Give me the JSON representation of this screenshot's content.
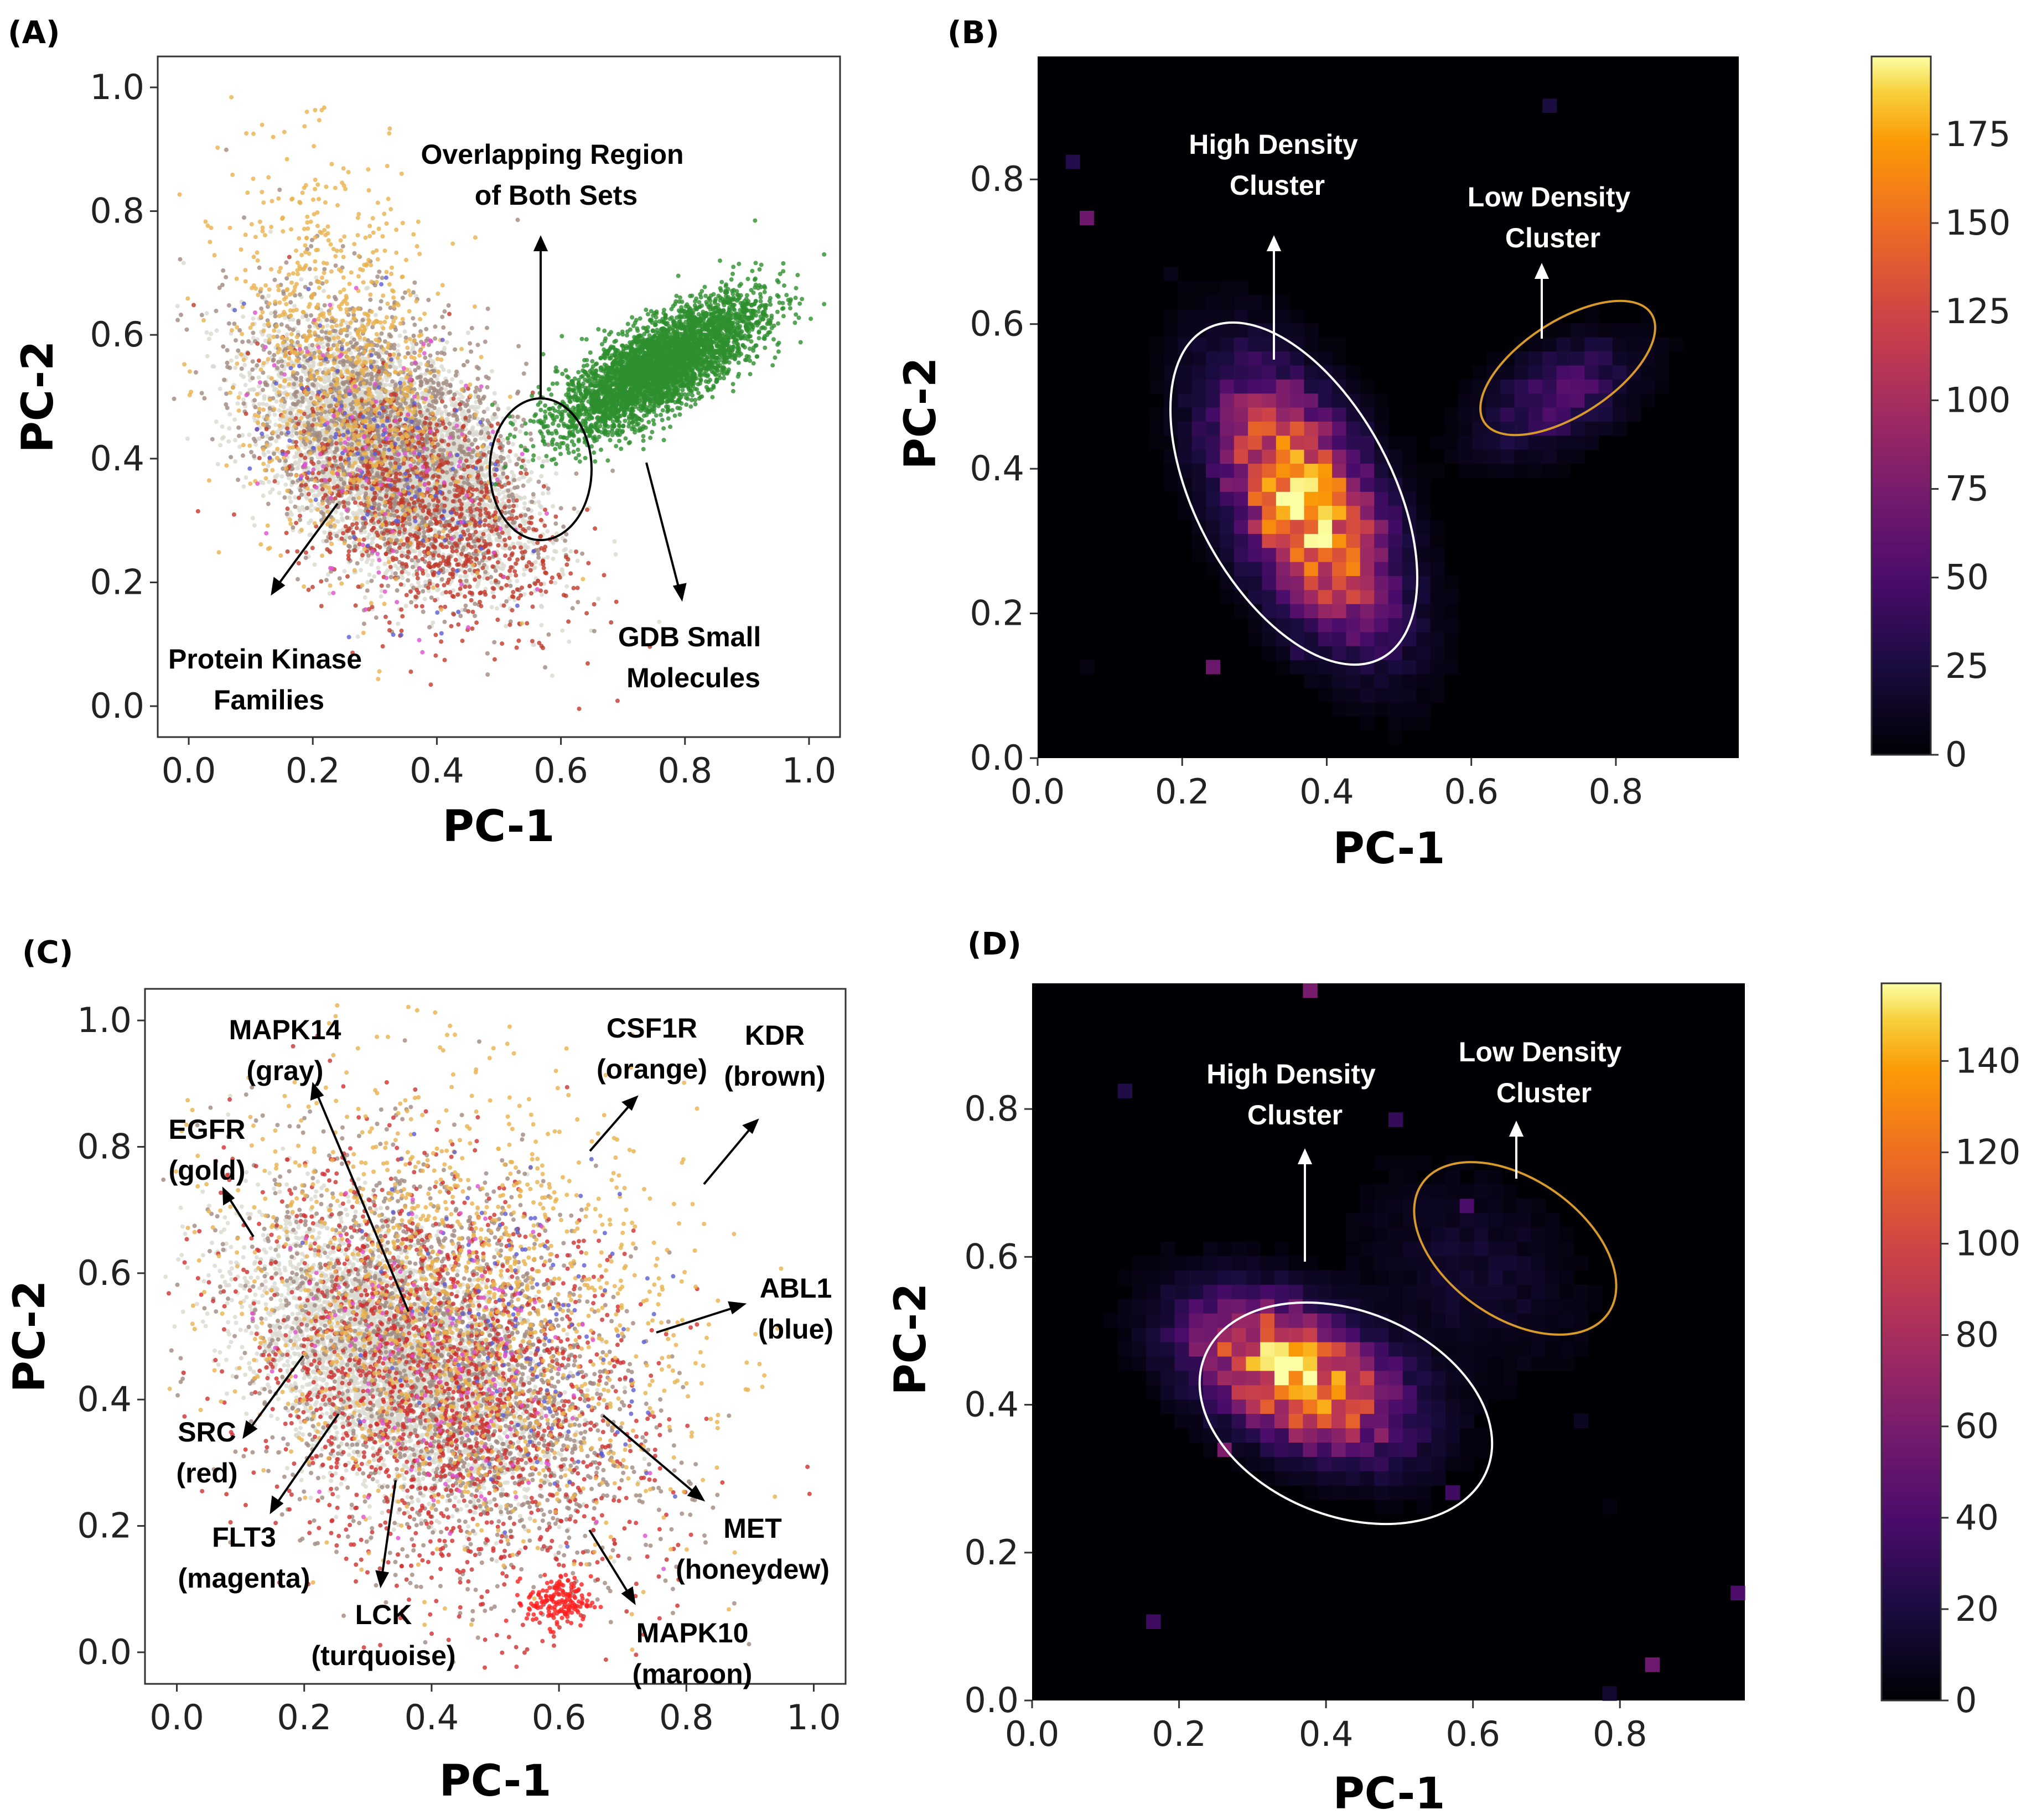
{
  "figure": {
    "panels": [
      {
        "id": "A",
        "label": "(A)"
      },
      {
        "id": "B",
        "label": "(B)"
      },
      {
        "id": "C",
        "label": "(C)"
      },
      {
        "id": "D",
        "label": "(D)"
      }
    ]
  },
  "chart_data": [
    {
      "id": "A",
      "type": "scatter",
      "label": "(A)",
      "xlabel": "PC-1",
      "ylabel": "PC-2",
      "xlim": [
        -0.05,
        1.05
      ],
      "ylim": [
        -0.05,
        1.05
      ],
      "xticks": [
        "0.0",
        "0.2",
        "0.4",
        "0.6",
        "0.8",
        "1.0"
      ],
      "yticks": [
        "0.0",
        "0.2",
        "0.4",
        "0.6",
        "0.8",
        "1.0"
      ],
      "grid": false,
      "series": [
        {
          "color": "#d9d9d0",
          "center": [
            0.33,
            0.4
          ],
          "spread": [
            0.1,
            0.09
          ],
          "rho": -0.5,
          "count": 5000
        },
        {
          "color": "#a08a80",
          "center": [
            0.32,
            0.43
          ],
          "spread": [
            0.11,
            0.12
          ],
          "rho": -0.45,
          "count": 1800
        },
        {
          "color": "#c0392b",
          "center": [
            0.38,
            0.32
          ],
          "spread": [
            0.11,
            0.1
          ],
          "rho": -0.4,
          "count": 900
        },
        {
          "color": "#e8b24c",
          "center": [
            0.25,
            0.55
          ],
          "spread": [
            0.09,
            0.16
          ],
          "rho": -0.3,
          "count": 900
        },
        {
          "color": "#5b5bd6",
          "center": [
            0.3,
            0.4
          ],
          "spread": [
            0.1,
            0.12
          ],
          "rho": -0.4,
          "count": 120
        },
        {
          "color": "#e04fd0",
          "center": [
            0.32,
            0.38
          ],
          "spread": [
            0.1,
            0.12
          ],
          "rho": -0.4,
          "count": 120
        },
        {
          "color": "#2d8f2d",
          "center": [
            0.76,
            0.55
          ],
          "spread": [
            0.08,
            0.055
          ],
          "rho": 0.75,
          "count": 4000
        }
      ],
      "annotations": [
        {
          "text": [
            "Overlapping Region",
            "of Both Sets"
          ],
          "color": "#000000"
        },
        {
          "text": [
            "Protein Kinase",
            "Families"
          ],
          "color": "#000000"
        },
        {
          "text": [
            "GDB Small",
            "Molecules"
          ],
          "color": "#000000"
        }
      ]
    },
    {
      "id": "B",
      "type": "heatmap",
      "label": "(B)",
      "xlabel": "PC-1",
      "ylabel": "PC-2",
      "xlim": [
        0.0,
        0.97
      ],
      "ylim": [
        0.0,
        0.97
      ],
      "xticks": [
        "0.0",
        "0.2",
        "0.4",
        "0.6",
        "0.8"
      ],
      "yticks": [
        "0.0",
        "0.2",
        "0.4",
        "0.6",
        "0.8"
      ],
      "colorbar": {
        "min": 0,
        "max": 197,
        "ticks": [
          "0",
          "25",
          "50",
          "75",
          "100",
          "125",
          "150",
          "175"
        ],
        "colormap": "inferno"
      },
      "components": [
        {
          "center": [
            0.37,
            0.35
          ],
          "spread": [
            0.075,
            0.11
          ],
          "rho": -0.55,
          "peak": 175
        },
        {
          "center": [
            0.72,
            0.5
          ],
          "spread": [
            0.07,
            0.05
          ],
          "rho": 0.5,
          "peak": 45
        }
      ],
      "annotations": [
        {
          "text": [
            "High Density",
            "Cluster"
          ],
          "color": "#ffffff"
        },
        {
          "text": [
            "Low Density",
            "Cluster"
          ],
          "color": "#ffffff"
        }
      ]
    },
    {
      "id": "C",
      "type": "scatter",
      "label": "(C)",
      "xlabel": "PC-1",
      "ylabel": "PC-2",
      "xlim": [
        -0.05,
        1.05
      ],
      "ylim": [
        -0.05,
        1.05
      ],
      "xticks": [
        "0.0",
        "0.2",
        "0.4",
        "0.6",
        "0.8",
        "1.0"
      ],
      "yticks": [
        "0.0",
        "0.2",
        "0.4",
        "0.6",
        "0.8",
        "1.0"
      ],
      "grid": false,
      "series": [
        {
          "color": "#d9d9d0",
          "center": [
            0.34,
            0.46
          ],
          "spread": [
            0.11,
            0.1
          ],
          "rho": -0.45,
          "count": 4200
        },
        {
          "color": "#a08a80",
          "center": [
            0.42,
            0.45
          ],
          "spread": [
            0.15,
            0.16
          ],
          "rho": -0.35,
          "count": 2200
        },
        {
          "color": "#d03030",
          "center": [
            0.42,
            0.42
          ],
          "spread": [
            0.16,
            0.17
          ],
          "rho": -0.3,
          "count": 1600
        },
        {
          "color": "#e8b24c",
          "center": [
            0.45,
            0.55
          ],
          "spread": [
            0.18,
            0.18
          ],
          "rho": -0.2,
          "count": 1400
        },
        {
          "color": "#5b5bd6",
          "center": [
            0.55,
            0.5
          ],
          "spread": [
            0.12,
            0.14
          ],
          "rho": -0.3,
          "count": 140
        },
        {
          "color": "#e04fd0",
          "center": [
            0.4,
            0.44
          ],
          "spread": [
            0.12,
            0.14
          ],
          "rho": -0.3,
          "count": 160
        },
        {
          "color": "#ff2020",
          "center": [
            0.6,
            0.08
          ],
          "spread": [
            0.025,
            0.02
          ],
          "rho": 0.0,
          "count": 160
        }
      ],
      "annotations": [
        {
          "text": [
            "MAPK14",
            "(gray)"
          ],
          "color": "#000000"
        },
        {
          "text": [
            "CSF1R",
            "(orange)"
          ],
          "color": "#000000"
        },
        {
          "text": [
            "KDR",
            "(brown)"
          ],
          "color": "#000000"
        },
        {
          "text": [
            "EGFR",
            "(gold)"
          ],
          "color": "#000000"
        },
        {
          "text": [
            "ABL1",
            "(blue)"
          ],
          "color": "#000000"
        },
        {
          "text": [
            "SRC",
            "(red)"
          ],
          "color": "#000000"
        },
        {
          "text": [
            "FLT3",
            "(magenta)"
          ],
          "color": "#000000"
        },
        {
          "text": [
            "LCK",
            "(turquoise)"
          ],
          "color": "#000000"
        },
        {
          "text": [
            "MET",
            "(honeydew)"
          ],
          "color": "#000000"
        },
        {
          "text": [
            "MAPK10",
            "(maroon)"
          ],
          "color": "#000000"
        }
      ]
    },
    {
      "id": "D",
      "type": "heatmap",
      "label": "(D)",
      "xlabel": "PC-1",
      "ylabel": "PC-2",
      "xlim": [
        0.0,
        0.97
      ],
      "ylim": [
        0.0,
        0.97
      ],
      "xticks": [
        "0.0",
        "0.2",
        "0.4",
        "0.6",
        "0.8"
      ],
      "yticks": [
        "0.0",
        "0.2",
        "0.4",
        "0.6",
        "0.8"
      ],
      "colorbar": {
        "min": 0,
        "max": 157,
        "ticks": [
          "0",
          "20",
          "40",
          "60",
          "80",
          "100",
          "120",
          "140"
        ],
        "colormap": "inferno"
      },
      "components": [
        {
          "center": [
            0.36,
            0.44
          ],
          "spread": [
            0.09,
            0.065
          ],
          "rho": -0.45,
          "peak": 135
        },
        {
          "center": [
            0.6,
            0.58
          ],
          "spread": [
            0.1,
            0.09
          ],
          "rho": -0.3,
          "peak": 12
        }
      ],
      "annotations": [
        {
          "text": [
            "High Density",
            "Cluster"
          ],
          "color": "#ffffff"
        },
        {
          "text": [
            "Low Density",
            "Cluster"
          ],
          "color": "#ffffff"
        }
      ]
    }
  ]
}
